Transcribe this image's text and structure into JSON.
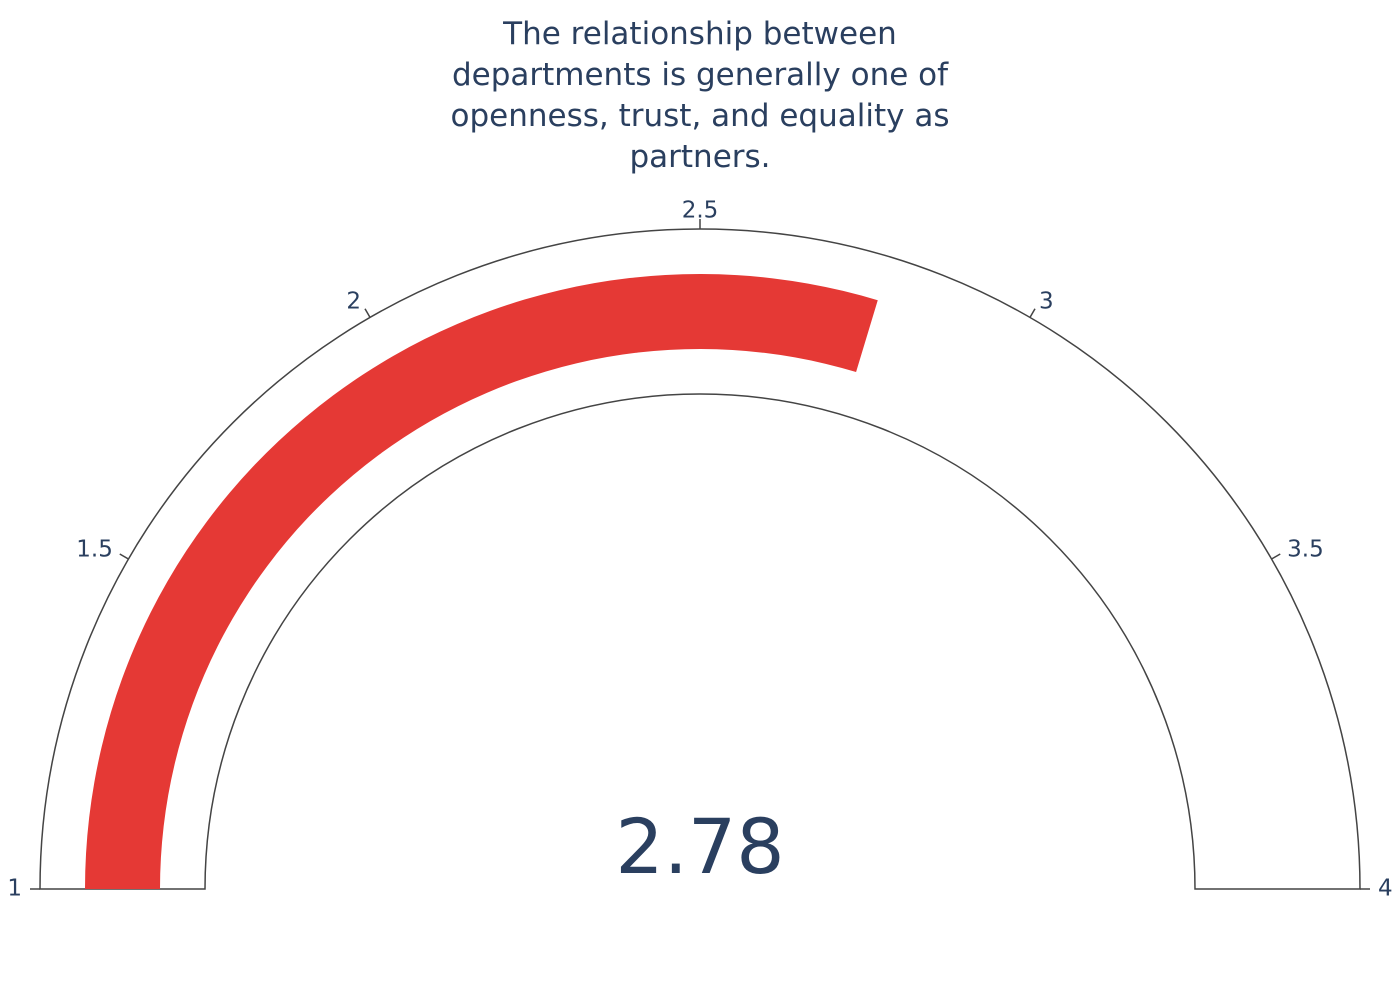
{
  "chart_data": {
    "type": "gauge",
    "title": "The relationship between departments is generally one of openness, trust, and equality as partners.",
    "value": 2.78,
    "value_label": "2.78",
    "range": [
      1,
      4
    ],
    "ticks": [
      {
        "value": 1,
        "label": "1"
      },
      {
        "value": 1.5,
        "label": "1.5"
      },
      {
        "value": 2,
        "label": "2"
      },
      {
        "value": 2.5,
        "label": "2.5"
      },
      {
        "value": 3,
        "label": "3"
      },
      {
        "value": 3.5,
        "label": "3.5"
      },
      {
        "value": 4,
        "label": "4"
      }
    ],
    "bar_color": "#e53935",
    "outline_color": "#444444",
    "text_color": "#2a3f5f"
  }
}
